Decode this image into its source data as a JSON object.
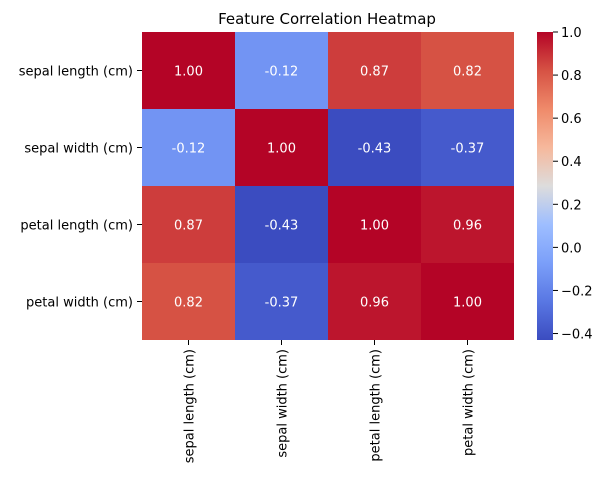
{
  "chart_data": {
    "type": "heatmap",
    "title": "Feature Correlation Heatmap",
    "xlabel": "",
    "ylabel": "",
    "row_labels": [
      "sepal length (cm)",
      "sepal width (cm)",
      "petal length (cm)",
      "petal width (cm)"
    ],
    "col_labels": [
      "sepal length (cm)",
      "sepal width (cm)",
      "petal length (cm)",
      "petal width (cm)"
    ],
    "values": [
      [
        1.0,
        -0.12,
        0.87,
        0.82
      ],
      [
        -0.12,
        1.0,
        -0.43,
        -0.37
      ],
      [
        0.87,
        -0.43,
        1.0,
        0.96
      ],
      [
        0.82,
        -0.37,
        0.96,
        1.0
      ]
    ],
    "value_labels": [
      [
        "1.00",
        "-0.12",
        "0.87",
        "0.82"
      ],
      [
        "-0.12",
        "1.00",
        "-0.43",
        "-0.37"
      ],
      [
        "0.87",
        "-0.43",
        "1.00",
        "0.96"
      ],
      [
        "0.82",
        "-0.37",
        "0.96",
        "1.00"
      ]
    ],
    "colormap": "coolwarm",
    "vmin": -0.43,
    "vmax": 1.0,
    "colorbar_ticks": [
      1.0,
      0.8,
      0.6,
      0.4,
      0.2,
      0.0,
      -0.2,
      -0.4
    ],
    "colorbar_tick_labels": [
      "1.0",
      "0.8",
      "0.6",
      "0.4",
      "0.2",
      "0.0",
      "−0.2",
      "−0.4"
    ],
    "grid": false,
    "legend": "colorbar-right"
  }
}
